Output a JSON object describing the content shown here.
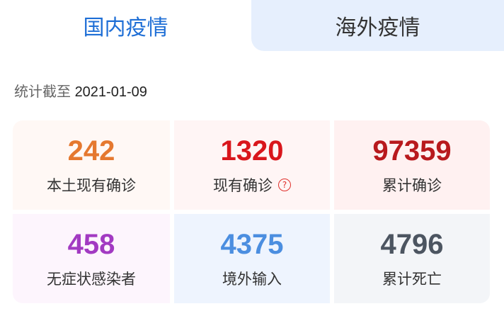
{
  "tabs": [
    {
      "label": "国内疫情",
      "active": true
    },
    {
      "label": "海外疫情",
      "active": false
    }
  ],
  "date": {
    "prefix": "统计截至",
    "value": "2021-01-09"
  },
  "stats": [
    {
      "value": "242",
      "label": "本土现有确诊",
      "color": "#e5782f",
      "bg": "#fff8f5"
    },
    {
      "value": "1320",
      "label": "现有确诊",
      "color": "#d9161c",
      "bg": "#fff5f5",
      "help_icon": "question-circle-icon",
      "help_glyph": "?"
    },
    {
      "value": "97359",
      "label": "累计确诊",
      "color": "#b8191d",
      "bg": "#fff1f1"
    },
    {
      "value": "458",
      "label": "无症状感染者",
      "color": "#a23ac2",
      "bg": "#fdf5fd"
    },
    {
      "value": "4375",
      "label": "境外输入",
      "color": "#4b8ee0",
      "bg": "#eef4fe"
    },
    {
      "value": "4796",
      "label": "累计死亡",
      "color": "#4c5561",
      "bg": "#f3f5f8"
    }
  ]
}
